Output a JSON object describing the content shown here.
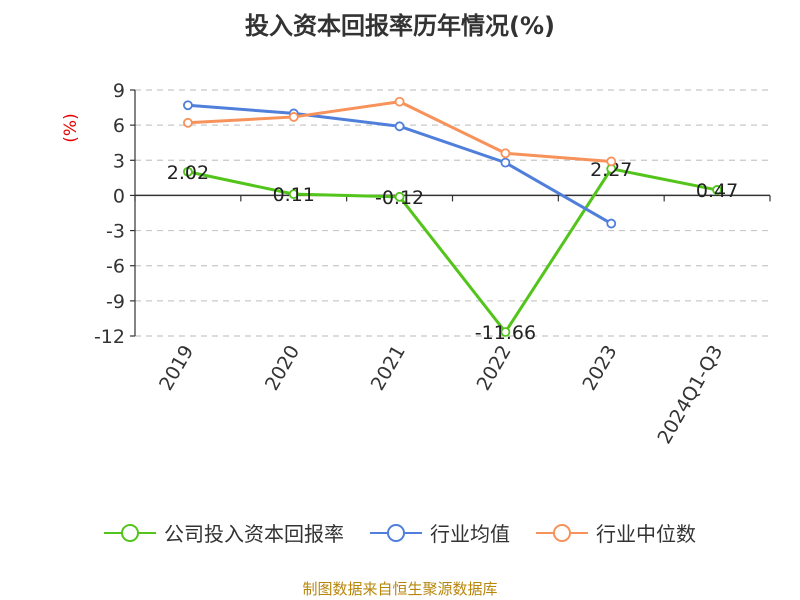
{
  "chart_data": {
    "type": "line",
    "title": "投入资本回报率历年情况(%)",
    "ylabel": "(%)",
    "categories": [
      "2019",
      "2020",
      "2021",
      "2022",
      "2023",
      "2024Q1-Q3"
    ],
    "ylim": [
      -12,
      9
    ],
    "yticks": [
      9,
      6,
      3,
      0,
      -3,
      -6,
      -9,
      -12
    ],
    "grid": true,
    "legend_position": "bottom",
    "series": [
      {
        "name": "公司投入资本回报率",
        "color": "#52c41a",
        "values": [
          2.02,
          0.11,
          -0.12,
          -11.66,
          2.27,
          0.47
        ],
        "labels": [
          "2.02",
          "0.11",
          "-0.12",
          "-11.66",
          "2.27",
          "0.47"
        ]
      },
      {
        "name": "行业均值",
        "color": "#4f7fdb",
        "values": [
          7.7,
          7.0,
          5.9,
          2.8,
          -2.4,
          null
        ]
      },
      {
        "name": "行业中位数",
        "color": "#f7925a",
        "values": [
          6.2,
          6.7,
          8.0,
          3.6,
          2.9,
          null
        ]
      }
    ]
  },
  "source": "制图数据来自恒生聚源数据库"
}
